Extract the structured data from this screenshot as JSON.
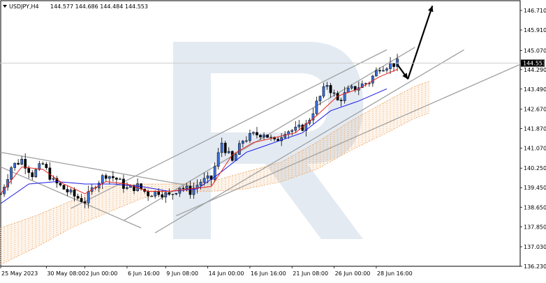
{
  "header": {
    "symbol_timeframe": "USDJPY,H4",
    "ohlc": "144.577 144.686 144.484 144.553"
  },
  "price_tag": "144.553",
  "colors": {
    "bull": "#3a6fd8",
    "bear": "#000000",
    "tenkan": "#e8211a",
    "kijun": "#1a1ae8",
    "cloud": "#f0a25a",
    "trend": "#a0a0a0",
    "arrow": "#000000",
    "watermark": "#e3eaf2"
  },
  "chart_data": {
    "type": "candlestick",
    "title": "",
    "instrument": "USDJPY",
    "timeframe": "H4",
    "ylim": [
      136.23,
      147.11
    ],
    "y_ticks": [
      "146.710",
      "145.910",
      "145.070",
      "144.290",
      "143.490",
      "142.670",
      "141.870",
      "141.070",
      "140.250",
      "139.450",
      "138.650",
      "137.850",
      "137.030",
      "136.230"
    ],
    "x_ticks": [
      "25 May 2023",
      "30 May 08:00",
      "2 Jun 00:00",
      "6 Jun 16:00",
      "9 Jun 08:00",
      "14 Jun 00:00",
      "16 Jun 16:00",
      "21 Jun 08:00",
      "26 Jun 00:00",
      "28 Jun 16:00"
    ],
    "last_price": 144.553,
    "close_path": [
      [
        0,
        139.2
      ],
      [
        3,
        140.3
      ],
      [
        6,
        140.6
      ],
      [
        9,
        140.0
      ],
      [
        12,
        140.4
      ],
      [
        15,
        139.7
      ],
      [
        18,
        139.4
      ],
      [
        21,
        139.1
      ],
      [
        24,
        138.9
      ],
      [
        27,
        139.6
      ],
      [
        30,
        140.0
      ],
      [
        33,
        139.8
      ],
      [
        36,
        139.4
      ],
      [
        39,
        139.5
      ],
      [
        42,
        139.2
      ],
      [
        45,
        139.3
      ],
      [
        48,
        139.1
      ],
      [
        51,
        139.5
      ],
      [
        54,
        139.3
      ],
      [
        57,
        139.7
      ],
      [
        60,
        139.8
      ],
      [
        63,
        141.3
      ],
      [
        66,
        140.5
      ],
      [
        69,
        141.4
      ],
      [
        72,
        141.6
      ],
      [
        75,
        141.7
      ],
      [
        78,
        141.3
      ],
      [
        81,
        141.8
      ],
      [
        84,
        141.8
      ],
      [
        87,
        142.0
      ],
      [
        90,
        142.9
      ],
      [
        93,
        143.7
      ],
      [
        96,
        143.0
      ],
      [
        99,
        143.4
      ],
      [
        102,
        143.6
      ],
      [
        105,
        143.8
      ],
      [
        108,
        144.4
      ],
      [
        111,
        144.5
      ],
      [
        113,
        144.55
      ]
    ],
    "tenkan_sen": [
      [
        0,
        139.2
      ],
      [
        6,
        140.3
      ],
      [
        12,
        140.2
      ],
      [
        18,
        139.6
      ],
      [
        24,
        139.2
      ],
      [
        30,
        139.7
      ],
      [
        36,
        139.6
      ],
      [
        42,
        139.3
      ],
      [
        48,
        139.3
      ],
      [
        54,
        139.4
      ],
      [
        60,
        139.5
      ],
      [
        66,
        140.8
      ],
      [
        72,
        141.3
      ],
      [
        78,
        141.5
      ],
      [
        84,
        141.7
      ],
      [
        90,
        142.4
      ],
      [
        96,
        143.2
      ],
      [
        102,
        143.5
      ],
      [
        108,
        144.0
      ],
      [
        113,
        144.3
      ]
    ],
    "kijun_sen": [
      [
        0,
        138.8
      ],
      [
        8,
        139.6
      ],
      [
        16,
        139.7
      ],
      [
        24,
        139.6
      ],
      [
        32,
        139.6
      ],
      [
        40,
        139.5
      ],
      [
        48,
        139.3
      ],
      [
        56,
        139.4
      ],
      [
        62,
        140.0
      ],
      [
        70,
        140.9
      ],
      [
        78,
        141.3
      ],
      [
        86,
        141.7
      ],
      [
        94,
        142.6
      ],
      [
        102,
        143.0
      ],
      [
        110,
        143.5
      ]
    ],
    "cloud": {
      "upper": [
        [
          0,
          137.8
        ],
        [
          10,
          138.3
        ],
        [
          20,
          138.9
        ],
        [
          30,
          139.5
        ],
        [
          40,
          139.6
        ],
        [
          50,
          139.6
        ],
        [
          60,
          139.7
        ],
        [
          70,
          140.1
        ],
        [
          80,
          140.5
        ],
        [
          90,
          141.3
        ],
        [
          100,
          142.2
        ],
        [
          110,
          143.0
        ],
        [
          118,
          143.6
        ],
        [
          122,
          143.8
        ]
      ],
      "lower": [
        [
          0,
          136.3
        ],
        [
          10,
          137.0
        ],
        [
          20,
          137.8
        ],
        [
          30,
          138.4
        ],
        [
          40,
          139.0
        ],
        [
          50,
          139.3
        ],
        [
          60,
          139.3
        ],
        [
          70,
          139.4
        ],
        [
          80,
          139.7
        ],
        [
          90,
          140.2
        ],
        [
          100,
          141.0
        ],
        [
          110,
          141.7
        ],
        [
          118,
          142.3
        ],
        [
          122,
          142.5
        ]
      ]
    },
    "trend_lines": [
      {
        "from": [
          0,
          140.9
        ],
        "to": [
          55,
          139.5
        ]
      },
      {
        "from": [
          0,
          140.3
        ],
        "to": [
          40,
          137.8
        ]
      },
      {
        "from": [
          20,
          138.6
        ],
        "to": [
          110,
          145.1
        ]
      },
      {
        "from": [
          35,
          138.1
        ],
        "to": [
          118,
          145.2
        ]
      },
      {
        "from": [
          44,
          137.6
        ],
        "to": [
          132,
          145.1
        ]
      },
      {
        "from": [
          50,
          138.3
        ],
        "to": [
          148,
          144.5
        ]
      }
    ],
    "forecast_arrows": [
      {
        "from": [
          113,
          144.5
        ],
        "to": [
          116,
          143.9
        ]
      },
      {
        "from": [
          116,
          143.9
        ],
        "to": [
          123,
          146.9
        ]
      }
    ]
  }
}
